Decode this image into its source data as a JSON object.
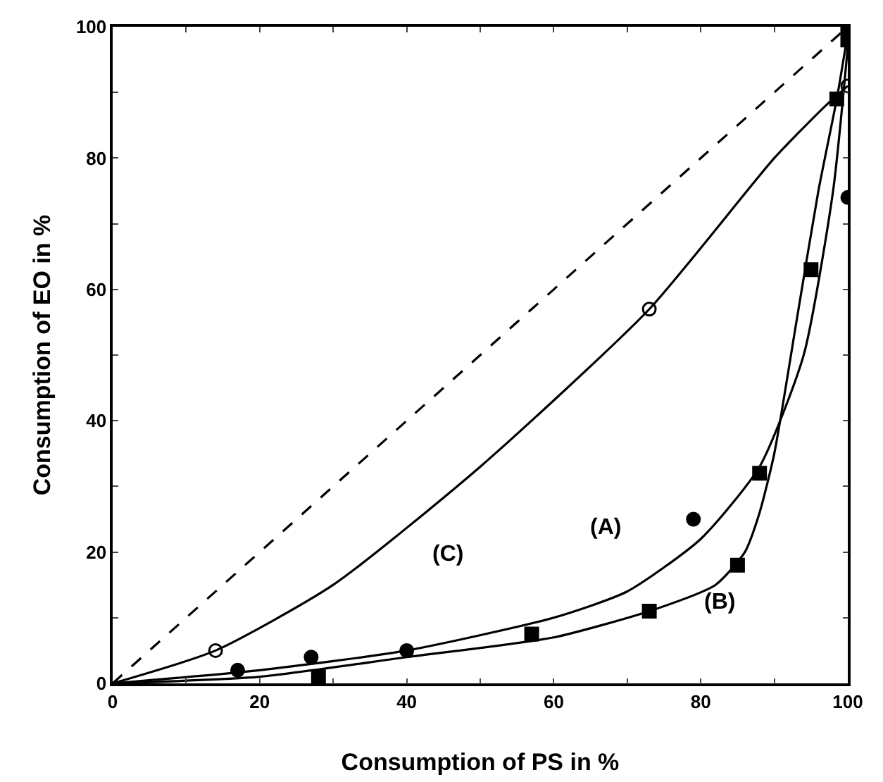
{
  "chart_data": {
    "type": "scatter",
    "xlabel": "Consumption of PS in %",
    "ylabel": "Consumption of EO in %",
    "xlim": [
      0,
      100
    ],
    "ylim": [
      0,
      100
    ],
    "xticks": [
      0,
      {
        "value": 10,
        "label": null
      },
      20,
      {
        "value": 30,
        "label": null
      },
      40,
      {
        "value": 50,
        "label": null
      },
      60,
      {
        "value": 70,
        "label": null
      },
      80,
      {
        "value": 90,
        "label": null
      },
      100
    ],
    "yticks": [
      0,
      {
        "value": 10,
        "label": null
      },
      20,
      {
        "value": 30,
        "label": null
      },
      40,
      {
        "value": 50,
        "label": null
      },
      60,
      {
        "value": 70,
        "label": null
      },
      80,
      {
        "value": 90,
        "label": null
      },
      100
    ],
    "grid": false,
    "series": [
      {
        "type": "line",
        "color": "#000000",
        "line_style": "dashed",
        "marker": "none",
        "x": [
          0,
          100
        ],
        "values": [
          0,
          100
        ]
      },
      {
        "type": "line",
        "color": "#000000",
        "line_style": "solid",
        "marker": "none",
        "x": [
          0,
          14,
          30,
          50,
          73,
          90,
          97,
          100
        ],
        "values": [
          0,
          5,
          15,
          33,
          57,
          80,
          88,
          91
        ]
      },
      {
        "type": "line",
        "color": "#000000",
        "line_style": "solid",
        "marker": "none",
        "x": [
          0,
          20,
          40,
          60,
          70,
          80,
          88,
          94,
          98,
          100
        ],
        "values": [
          0,
          2,
          5,
          10,
          14,
          22,
          33,
          50,
          75,
          97
        ]
      },
      {
        "type": "line",
        "color": "#000000",
        "line_style": "solid",
        "marker": "none",
        "x": [
          0,
          20,
          40,
          60,
          73,
          82,
          86,
          88,
          90,
          93,
          96,
          98.5,
          100
        ],
        "values": [
          0,
          1,
          4,
          7,
          11,
          15,
          20,
          26,
          35,
          55,
          75,
          89,
          99
        ]
      },
      {
        "color": "#000000",
        "marker": "circle-open",
        "x": [
          14,
          73,
          100
        ],
        "values": [
          5,
          57,
          91
        ]
      },
      {
        "color": "#000000",
        "marker": "circle",
        "x": [
          17,
          27,
          40,
          79,
          100
        ],
        "values": [
          2,
          4,
          5,
          25,
          74
        ]
      },
      {
        "color": "#000000",
        "marker": "square",
        "x": [
          28,
          57,
          73,
          85,
          88,
          95,
          98.5,
          100,
          100
        ],
        "values": [
          1,
          7.5,
          11,
          18,
          32,
          63,
          89,
          98,
          100
        ]
      }
    ],
    "annotations": [
      "(C)",
      "(A)",
      "(B)"
    ]
  }
}
